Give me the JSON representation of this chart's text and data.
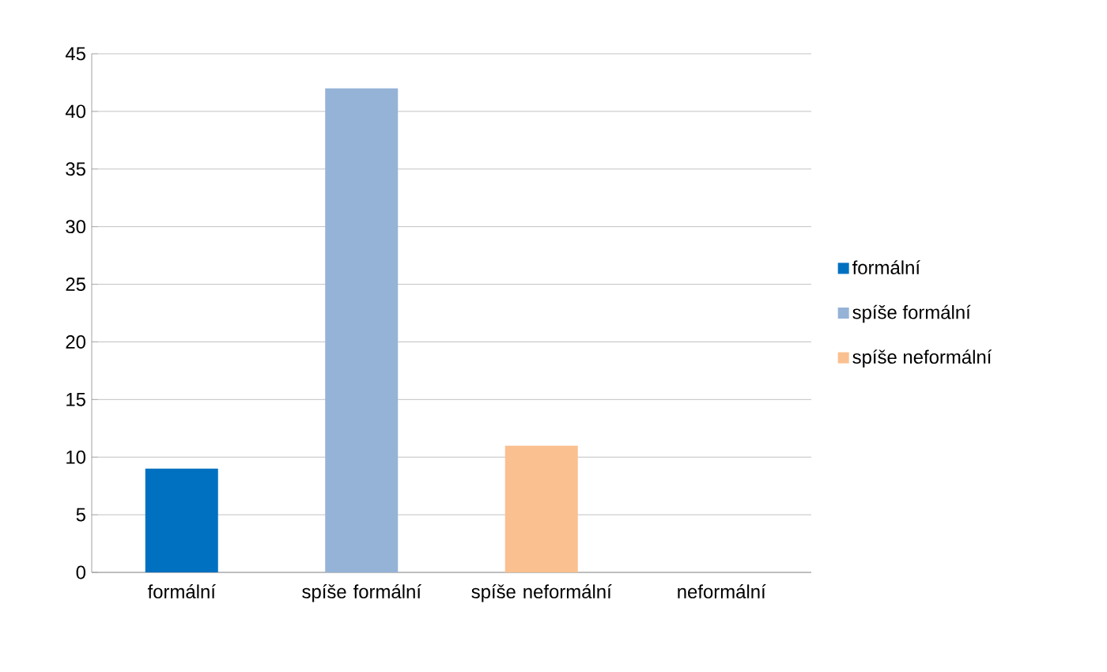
{
  "chart_data": {
    "type": "bar",
    "categories": [
      "formální",
      "spíše formální",
      "spíše neformální",
      "neformální"
    ],
    "series": [
      {
        "name": "formální",
        "color": "#0070c0",
        "values": [
          9,
          null,
          null,
          null
        ]
      },
      {
        "name": "spíše formální",
        "color": "#95b3d7",
        "values": [
          null,
          42,
          null,
          null
        ]
      },
      {
        "name": "spíše neformální",
        "color": "#fac090",
        "values": [
          null,
          null,
          11,
          null
        ]
      }
    ],
    "ylim": [
      0,
      45
    ],
    "yticks": [
      0,
      5,
      10,
      15,
      20,
      25,
      30,
      35,
      40,
      45
    ],
    "grid": "y",
    "legend": "right"
  }
}
